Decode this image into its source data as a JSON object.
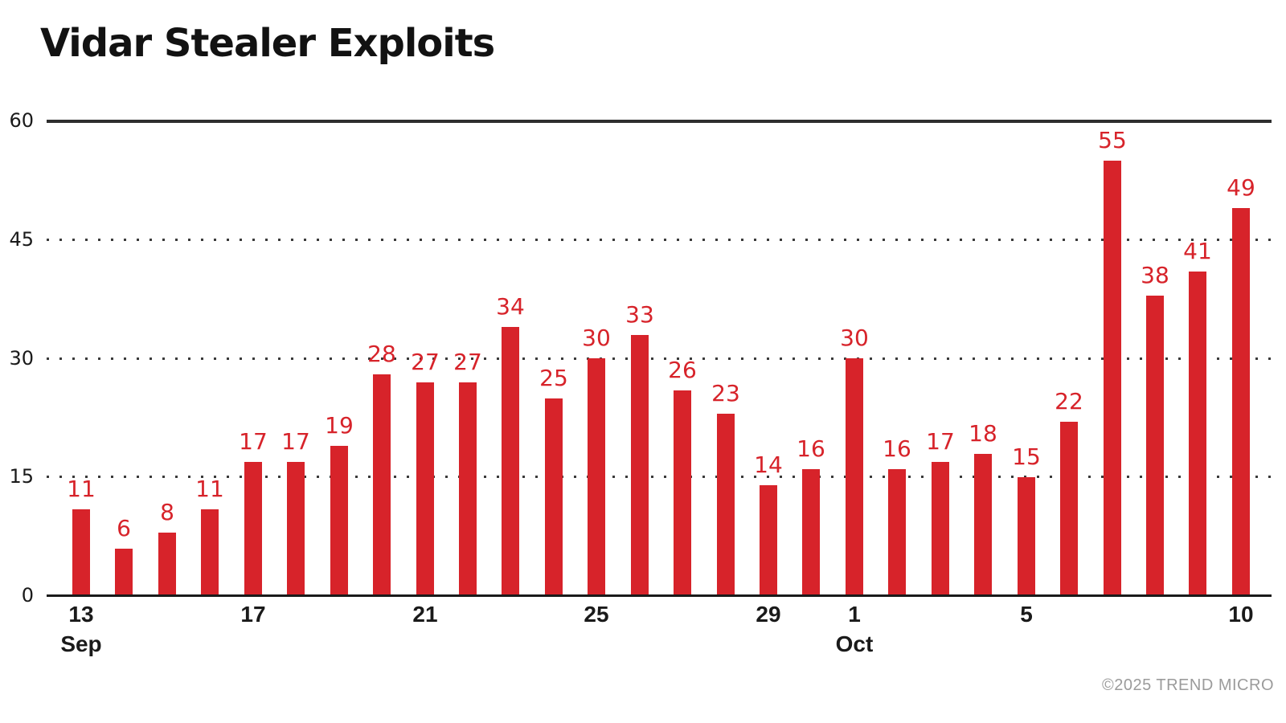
{
  "title": "Vidar Stealer Exploits",
  "footer_credit": "©2025 TREND MICRO",
  "colors": {
    "bar": "#d7232a",
    "value_label": "#d7232a",
    "axis_line": "#1a1a1a",
    "top_gridline": "#2e2e2e",
    "dotted_gridline": "#3a3a3a",
    "tick_label": "#1a1a1a",
    "title": "#121212",
    "footer": "#9b9b9b"
  },
  "chart_data": {
    "type": "bar",
    "title": "Vidar Stealer Exploits",
    "x": [
      "Sep 13",
      "Sep 14",
      "Sep 15",
      "Sep 16",
      "Sep 17",
      "Sep 18",
      "Sep 19",
      "Sep 20",
      "Sep 21",
      "Sep 22",
      "Sep 23",
      "Sep 24",
      "Sep 25",
      "Sep 26",
      "Sep 27",
      "Sep 28",
      "Sep 29",
      "Sep 30",
      "Oct 1",
      "Oct 2",
      "Oct 3",
      "Oct 4",
      "Oct 5",
      "Oct 6",
      "Oct 7",
      "Oct 8",
      "Oct 9",
      "Oct 10"
    ],
    "values": [
      11,
      6,
      8,
      11,
      17,
      17,
      19,
      28,
      27,
      27,
      34,
      25,
      30,
      33,
      26,
      23,
      14,
      16,
      30,
      16,
      17,
      18,
      15,
      22,
      55,
      38,
      41,
      49
    ],
    "xlabel": "",
    "ylabel": "",
    "ylim": [
      0,
      60
    ],
    "yticks": [
      0,
      15,
      30,
      45,
      60
    ],
    "grid": "horizontal; dotted at 15/30/45, solid dark line at 60, solid axis at 0",
    "legend": "none",
    "bar_value_labels": true,
    "xtick_marks": [
      {
        "index": 0,
        "day": "13",
        "month": "Sep"
      },
      {
        "index": 4,
        "day": "17"
      },
      {
        "index": 8,
        "day": "21"
      },
      {
        "index": 12,
        "day": "25"
      },
      {
        "index": 16,
        "day": "29"
      },
      {
        "index": 18,
        "day": "1",
        "month": "Oct"
      },
      {
        "index": 22,
        "day": "5"
      },
      {
        "index": 27,
        "day": "10"
      }
    ]
  }
}
